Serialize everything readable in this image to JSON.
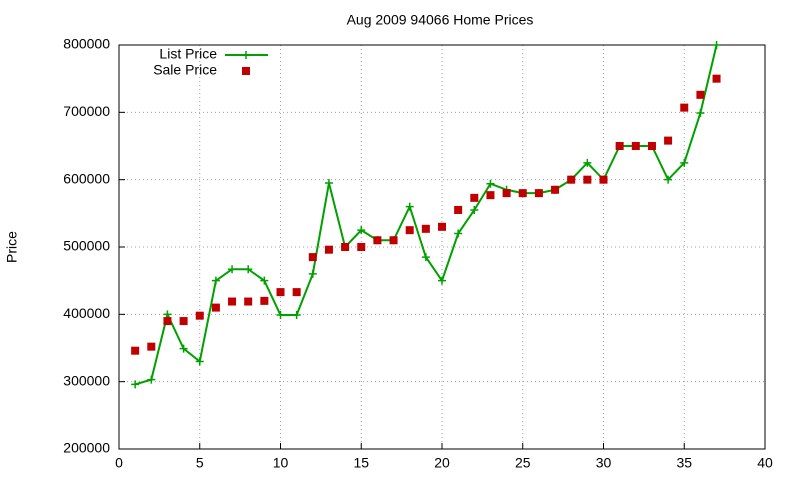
{
  "chart_data": {
    "type": "line",
    "title": "Aug 2009 94066 Home Prices",
    "y_label": "Price",
    "x": [
      1,
      2,
      3,
      4,
      5,
      6,
      7,
      8,
      9,
      10,
      11,
      12,
      13,
      14,
      15,
      16,
      17,
      18,
      19,
      20,
      21,
      22,
      23,
      24,
      25,
      26,
      27,
      28,
      29,
      30,
      31,
      32,
      33,
      34,
      35,
      36,
      37
    ],
    "series": [
      {
        "name": "List Price",
        "color": "#00a000",
        "line": true,
        "marker": "plus",
        "values": [
          296000,
          303000,
          400000,
          349000,
          330000,
          450000,
          467000,
          467000,
          450000,
          399000,
          399000,
          460000,
          595000,
          500000,
          525000,
          510000,
          510000,
          560000,
          485000,
          450000,
          520000,
          555000,
          594000,
          585000,
          580000,
          580000,
          585000,
          600000,
          625000,
          600000,
          650000,
          650000,
          650000,
          600000,
          625000,
          699000,
          800000
        ]
      },
      {
        "name": "Sale Price",
        "color": "#c00000",
        "line": false,
        "marker": "square",
        "values": [
          346000,
          352000,
          390000,
          390000,
          398000,
          410000,
          419000,
          419000,
          420000,
          433000,
          433000,
          485000,
          496000,
          500000,
          500000,
          510000,
          510000,
          525000,
          527000,
          530000,
          555000,
          573000,
          577000,
          580000,
          580000,
          580000,
          585000,
          600000,
          600000,
          600000,
          650000,
          650000,
          650000,
          658000,
          707000,
          726000,
          750000
        ]
      }
    ],
    "xlim": [
      0,
      40
    ],
    "xticks": [
      0,
      5,
      10,
      15,
      20,
      25,
      30,
      35,
      40
    ],
    "ylim": [
      200000,
      800000
    ],
    "yticks": [
      200000,
      300000,
      400000,
      500000,
      600000,
      700000,
      800000
    ],
    "grid": true,
    "legend": "top-left"
  }
}
